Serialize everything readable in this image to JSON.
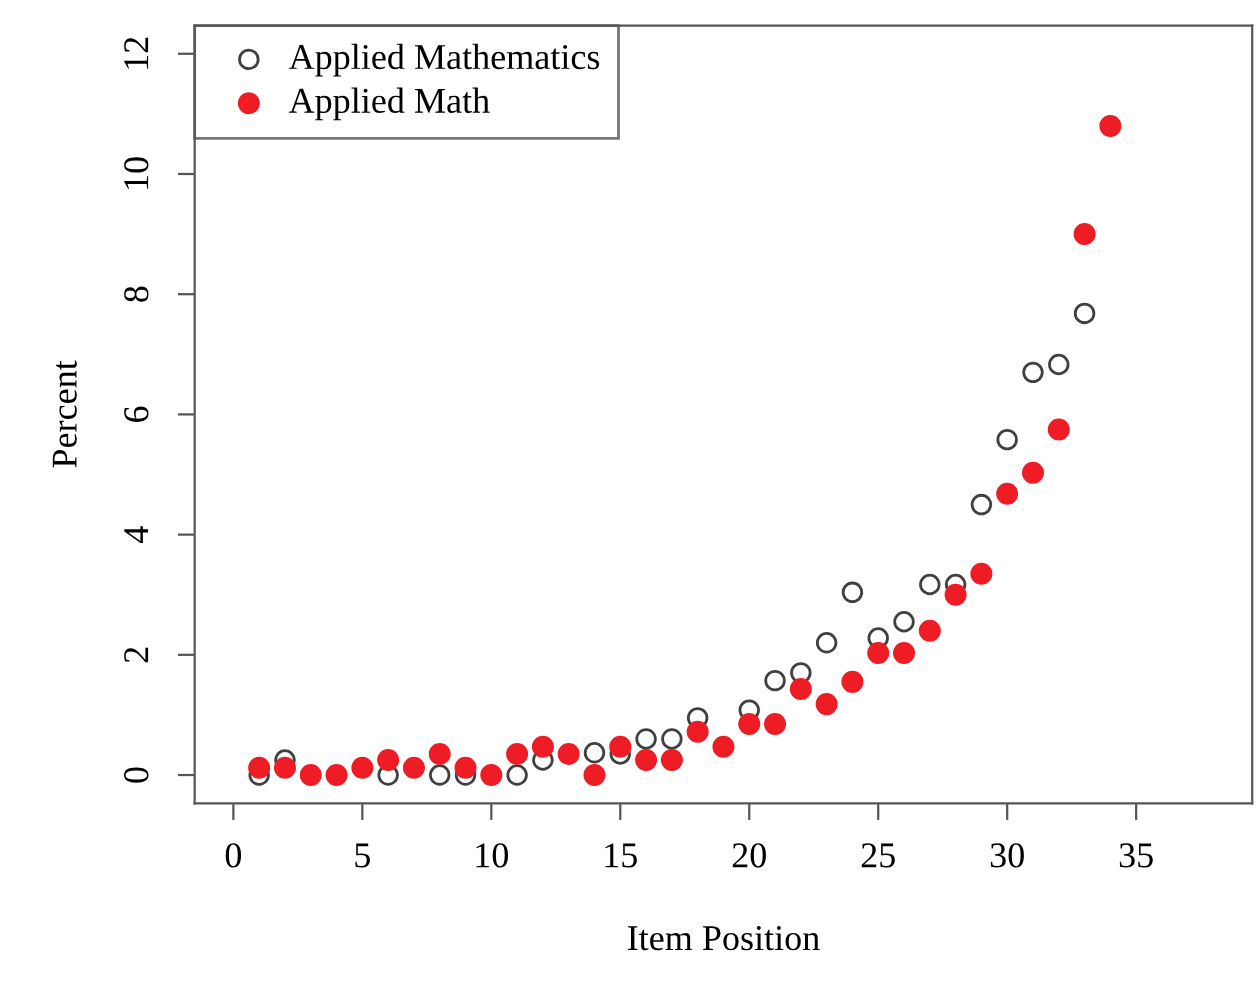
{
  "chart_data": {
    "type": "scatter",
    "xlabel": "Item Position",
    "ylabel": "Percent",
    "x": [
      1,
      2,
      3,
      4,
      5,
      6,
      7,
      8,
      9,
      10,
      11,
      12,
      13,
      14,
      15,
      16,
      17,
      18,
      19,
      20,
      21,
      22,
      23,
      24,
      25,
      26,
      27,
      28,
      29,
      30,
      31,
      32,
      33,
      34
    ],
    "series": [
      {
        "name": "Applied Mathematics",
        "color": "#404040",
        "marker": "circle",
        "values": [
          0,
          0.25,
          null,
          null,
          null,
          0,
          null,
          0,
          0,
          null,
          0,
          0.25,
          null,
          0.37,
          0.35,
          0.6,
          0.6,
          0.95,
          null,
          1.08,
          1.57,
          1.7,
          2.2,
          3.04,
          2.28,
          2.55,
          3.17,
          3.17,
          4.5,
          5.58,
          6.7,
          6.83,
          7.68,
          null
        ]
      },
      {
        "name": "Applied Math",
        "color": "#ee1c25",
        "marker": "circle",
        "values": [
          0.12,
          0.12,
          0,
          0,
          0.12,
          0.25,
          0.12,
          0.35,
          0.12,
          0,
          0.35,
          0.47,
          0.35,
          0,
          0.47,
          0.25,
          0.25,
          0.72,
          0.47,
          0.85,
          0.85,
          1.43,
          1.18,
          1.55,
          2.03,
          2.03,
          2.4,
          3.0,
          3.35,
          4.68,
          5.03,
          5.75,
          9.0,
          10.8
        ]
      }
    ],
    "xlim": [
      -1.5,
      39.5
    ],
    "xticks": [
      0,
      5,
      10,
      15,
      20,
      25,
      30,
      35
    ],
    "ylim": [
      -0.47,
      12.47
    ],
    "yticks": [
      0,
      2,
      4,
      6,
      8,
      10,
      12
    ],
    "grid": false,
    "legend": "top left"
  }
}
